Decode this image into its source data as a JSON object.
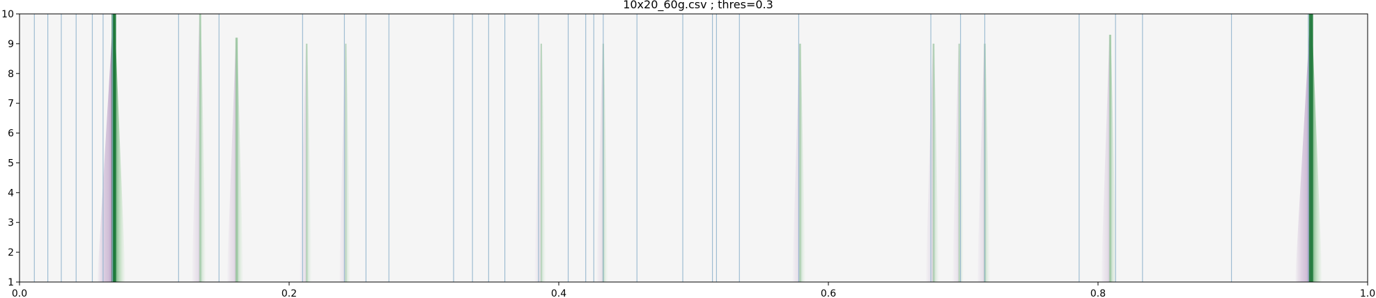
{
  "chart_data": {
    "type": "heatmap",
    "title": "10x20_60g.csv ; thres=0.3",
    "xlabel": "",
    "ylabel": "",
    "xlim": [
      0.0,
      1.0
    ],
    "ylim": [
      1,
      10
    ],
    "x_ticks": [
      "0.0",
      "0.2",
      "0.4",
      "0.6",
      "0.8",
      "1.0"
    ],
    "y_ticks": [
      "1",
      "2",
      "3",
      "4",
      "5",
      "6",
      "7",
      "8",
      "9",
      "10"
    ],
    "grid": false,
    "background_color": "#f5f5f5",
    "colormap": "PRGn",
    "reference_line_color": "#8fb3cc",
    "reference_lines_x": [
      0.011,
      0.021,
      0.031,
      0.042,
      0.054,
      0.062,
      0.069,
      0.118,
      0.148,
      0.21,
      0.241,
      0.257,
      0.274,
      0.322,
      0.336,
      0.348,
      0.36,
      0.385,
      0.407,
      0.42,
      0.426,
      0.433,
      0.458,
      0.492,
      0.514,
      0.517,
      0.534,
      0.578,
      0.676,
      0.698,
      0.716,
      0.786,
      0.813,
      0.833,
      0.899,
      0.956
    ],
    "peaks": [
      {
        "x": 0.07,
        "strength": 1.0,
        "top_y": 10
      },
      {
        "x": 0.134,
        "strength": 0.35,
        "top_y": 10
      },
      {
        "x": 0.161,
        "strength": 0.45,
        "top_y": 9.2
      },
      {
        "x": 0.213,
        "strength": 0.25,
        "top_y": 9.0
      },
      {
        "x": 0.242,
        "strength": 0.2,
        "top_y": 9.0
      },
      {
        "x": 0.387,
        "strength": 0.22,
        "top_y": 9.0
      },
      {
        "x": 0.433,
        "strength": 0.22,
        "top_y": 9.0
      },
      {
        "x": 0.579,
        "strength": 0.3,
        "top_y": 9.0
      },
      {
        "x": 0.678,
        "strength": 0.3,
        "top_y": 9.0
      },
      {
        "x": 0.697,
        "strength": 0.22,
        "top_y": 9.0
      },
      {
        "x": 0.716,
        "strength": 0.28,
        "top_y": 9.0
      },
      {
        "x": 0.809,
        "strength": 0.4,
        "top_y": 9.3
      },
      {
        "x": 0.958,
        "strength": 0.95,
        "top_y": 10
      }
    ]
  }
}
